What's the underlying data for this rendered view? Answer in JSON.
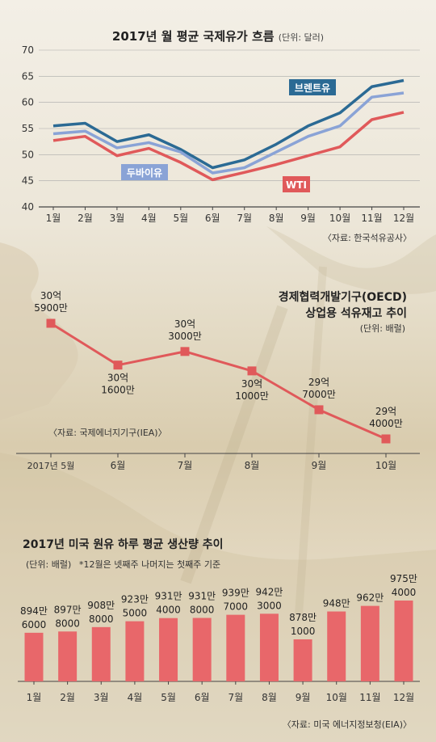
{
  "chart_data": [
    {
      "type": "line",
      "title": "2017년 월 평균 국제유가 흐름",
      "unit": "(단위: 달러)",
      "categories": [
        "1월",
        "2월",
        "3월",
        "4월",
        "5월",
        "6월",
        "7월",
        "8월",
        "9월",
        "10월",
        "11월",
        "12월"
      ],
      "ylim": [
        40,
        70
      ],
      "yticks": [
        "40",
        "45",
        "50",
        "55",
        "60",
        "65",
        "70"
      ],
      "series": [
        {
          "name": "브렌트유",
          "color": "#2b6a94",
          "values": [
            55.5,
            56.0,
            52.5,
            53.8,
            51.0,
            47.5,
            49.0,
            52.0,
            55.5,
            58.0,
            63.0,
            64.2
          ]
        },
        {
          "name": "두바이유",
          "color": "#8aa3d6",
          "values": [
            54.0,
            54.5,
            51.3,
            52.3,
            50.5,
            46.5,
            47.5,
            50.5,
            53.5,
            55.5,
            61.0,
            61.8
          ]
        },
        {
          "name": "WTI",
          "color": "#e0595a",
          "values": [
            52.7,
            53.5,
            49.8,
            51.2,
            48.5,
            45.2,
            46.6,
            48.1,
            49.8,
            51.5,
            56.7,
            58.1
          ]
        }
      ],
      "source": "〈자료: 한국석유공사〉"
    },
    {
      "type": "line",
      "title_line1": "경제협력개발기구(OECD)",
      "title_line2": "상업용 석유재고 추이",
      "unit": "(단위: 배럴)",
      "categories": [
        "2017년 5월",
        "6월",
        "7월",
        "8월",
        "9월",
        "10월"
      ],
      "values": [
        3059000000,
        3016000000,
        3030000000,
        3010000000,
        2970000000,
        2940000000
      ],
      "labels": [
        [
          "30억",
          "5900만"
        ],
        [
          "30억",
          "1600만"
        ],
        [
          "30억",
          "3000만"
        ],
        [
          "30억",
          "1000만"
        ],
        [
          "29억",
          "7000만"
        ],
        [
          "29억",
          "4000만"
        ]
      ],
      "color": "#e0595a",
      "source": "〈자료: 국제에너지기구(IEA)〉"
    },
    {
      "type": "bar",
      "title": "2017년 미국 원유 하루 평균 생산량 추이",
      "unit": "(단위: 배럴)",
      "note": "*12월은 넷째주 나머지는 첫째주 기준",
      "categories": [
        "1월",
        "2월",
        "3월",
        "4월",
        "5월",
        "6월",
        "7월",
        "8월",
        "9월",
        "10월",
        "11월",
        "12월"
      ],
      "values": [
        8946000,
        8978000,
        9088000,
        9235000,
        9314000,
        9318000,
        9397000,
        9423000,
        8781000,
        9480000,
        9620000,
        9754000
      ],
      "labels": [
        [
          "894만",
          "6000"
        ],
        [
          "897만",
          "8000"
        ],
        [
          "908만",
          "8000"
        ],
        [
          "923만",
          "5000"
        ],
        [
          "931만",
          "4000"
        ],
        [
          "931만",
          "8000"
        ],
        [
          "939만",
          "7000"
        ],
        [
          "942만",
          "3000"
        ],
        [
          "878만",
          "1000"
        ],
        [
          "948만",
          ""
        ],
        [
          "962만",
          ""
        ],
        [
          "975만",
          "4000"
        ]
      ],
      "color": "#e8676a",
      "source": "〈자료: 미국 에너지정보청(EIA)〉"
    }
  ]
}
